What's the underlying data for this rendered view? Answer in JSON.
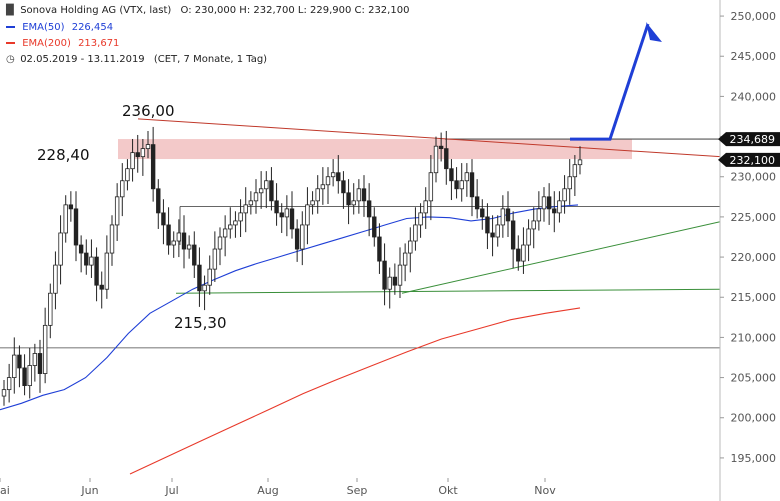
{
  "header": {
    "instrument": "Sonova Holding AG (VTX, last)",
    "ohlc": "O: 230,000  H: 232,700  L: 229,900  C: 232,100",
    "ema50_label": "EMA(50)",
    "ema50_value": "226,454",
    "ema200_label": "EMA(200)",
    "ema200_value": "213,671",
    "range": "02.05.2019 - 13.11.2019",
    "range_note": "(CET, 7 Monate, 1 Tag)"
  },
  "colors": {
    "up": "#222222",
    "ema50": "#1f3fd6",
    "ema200": "#e8392a",
    "resistance": "#c0392b",
    "support": "#3a8f3a",
    "zone": "#f3c9c9",
    "badge": "#111111",
    "arrow": "#1f3fd6"
  },
  "chart_data": {
    "type": "candlestick",
    "x_ticks": [
      "ai",
      "Jun",
      "Jul",
      "Aug",
      "Sep",
      "Okt",
      "Nov"
    ],
    "y_ticks": [
      "195,000",
      "200,000",
      "205,000",
      "210,000",
      "215,000",
      "220,000",
      "225,000",
      "230,000",
      "235,000",
      "240,000",
      "245,000",
      "250,000"
    ],
    "ylim": [
      192.5,
      252
    ],
    "annotations": [
      "236,00",
      "228,40",
      "215,30"
    ],
    "price_badges": [
      "234,689",
      "232,100"
    ],
    "close_path": [
      203.5,
      205.0,
      207.8,
      206.2,
      204.0,
      206.5,
      208.0,
      205.5,
      211.5,
      215.5,
      219.0,
      223.0,
      226.5,
      226.0,
      221.5,
      220.5,
      219.0,
      220.0,
      216.5,
      216.0,
      220.5,
      224.0,
      227.5,
      229.5,
      231.0,
      233.0,
      232.5,
      233.5,
      234.0,
      228.5,
      225.5,
      224.0,
      221.5,
      222.0,
      223.0,
      221.0,
      221.5,
      219.0,
      215.8,
      216.5,
      218.5,
      221.0,
      222.5,
      223.5,
      224.0,
      224.5,
      225.5,
      226.5,
      227.0,
      228.0,
      228.5,
      229.5,
      227.0,
      225.5,
      225.0,
      226.0,
      223.5,
      221.0,
      224.0,
      226.5,
      227.0,
      228.5,
      229.0,
      230.0,
      230.5,
      229.5,
      228.0,
      226.5,
      227.0,
      228.5,
      227.0,
      225.0,
      222.5,
      219.5,
      216.0,
      217.5,
      216.5,
      219.0,
      220.5,
      222.0,
      224.0,
      225.5,
      227.0,
      230.5,
      233.8,
      233.5,
      231.0,
      229.5,
      228.5,
      229.5,
      230.5,
      227.5,
      226.0,
      225.0,
      223.0,
      222.5,
      224.0,
      226.0,
      224.5,
      221.0,
      219.5,
      221.5,
      223.5,
      224.5,
      226.0,
      227.5,
      226.0,
      225.5,
      227.0,
      228.5,
      230.0,
      231.5,
      232.1
    ],
    "ema50": [
      201.0,
      201.8,
      202.8,
      203.5,
      205.0,
      207.5,
      210.5,
      213.0,
      214.5,
      216.0,
      217.2,
      218.3,
      219.2,
      220.0,
      220.8,
      221.6,
      222.4,
      223.2,
      224.0,
      224.8,
      225.0,
      224.9,
      224.5,
      224.8,
      225.5,
      226.0,
      226.3,
      226.5
    ],
    "ema200": [
      193.0,
      195.0,
      197.0,
      199.0,
      201.0,
      203.0,
      204.8,
      206.5,
      208.2,
      209.8,
      211.0,
      212.2,
      213.0,
      213.671
    ],
    "resistance_line": {
      "from": 237.2,
      "to": 232.5
    },
    "horizontal_levels": [
      234.689,
      226.3,
      208.7
    ],
    "support_lines": [
      {
        "from": 215.5,
        "to": 216.0
      },
      {
        "from": 215.5,
        "to": 224.4
      }
    ]
  }
}
